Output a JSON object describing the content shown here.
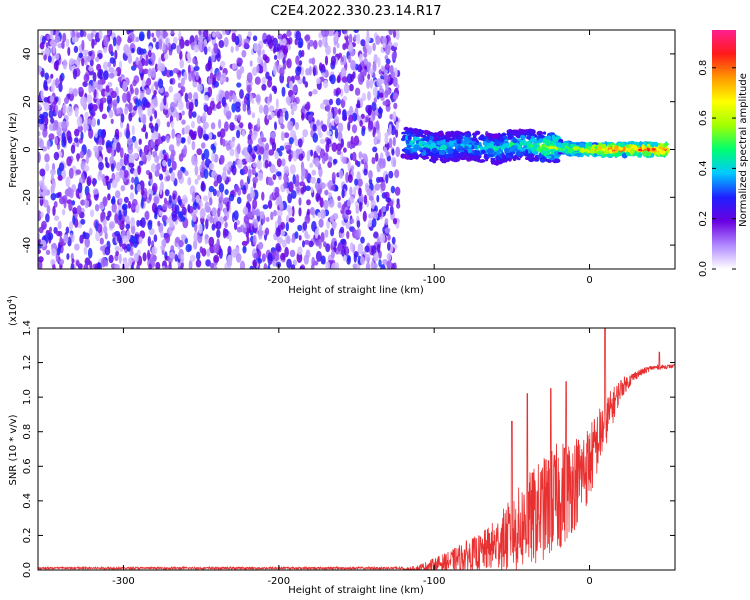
{
  "title": "C2E4.2022.330.23.14.R17",
  "chart_data": [
    {
      "type": "heatmap",
      "xlabel": "Height of straight line (km)",
      "ylabel": "Frequency (Hz)",
      "xlim": [
        -355,
        55
      ],
      "ylim": [
        -50,
        50
      ],
      "x_ticks": [
        {
          "value": -300,
          "label": "-300"
        },
        {
          "value": -200,
          "label": "-200"
        },
        {
          "value": -100,
          "label": "-100"
        },
        {
          "value": 0,
          "label": "0"
        }
      ],
      "y_ticks": [
        {
          "value": -40,
          "label": "-40"
        },
        {
          "value": -20,
          "label": "-20"
        },
        {
          "value": 0,
          "label": "0"
        },
        {
          "value": 20,
          "label": "20"
        },
        {
          "value": 40,
          "label": "40"
        }
      ],
      "noise_region": {
        "x_from": -355,
        "x_to": -123,
        "f_from": -50,
        "f_to": 50,
        "amplitude": [
          0.05,
          0.3
        ]
      },
      "signal_ridge": [
        {
          "x": -120,
          "f": 3,
          "amp": 0.45
        },
        {
          "x": -110,
          "f": 2,
          "amp": 0.5
        },
        {
          "x": -100,
          "f": 1,
          "amp": 0.45
        },
        {
          "x": -90,
          "f": 1,
          "amp": 0.45
        },
        {
          "x": -80,
          "f": 2,
          "amp": 0.45
        },
        {
          "x": -70,
          "f": 1,
          "amp": 0.45
        },
        {
          "x": -60,
          "f": 0,
          "amp": 0.5
        },
        {
          "x": -50,
          "f": 2,
          "amp": 0.5
        },
        {
          "x": -40,
          "f": 2,
          "amp": 0.5
        },
        {
          "x": -30,
          "f": 1,
          "amp": 0.6
        },
        {
          "x": -20,
          "f": 1,
          "amp": 0.65
        },
        {
          "x": -10,
          "f": 0,
          "amp": 0.75
        },
        {
          "x": 0,
          "f": 0,
          "amp": 0.8
        },
        {
          "x": 10,
          "f": 0,
          "amp": 0.85
        },
        {
          "x": 20,
          "f": 0,
          "amp": 0.9
        },
        {
          "x": 30,
          "f": 0,
          "amp": 0.92
        },
        {
          "x": 40,
          "f": 0,
          "amp": 0.92
        },
        {
          "x": 50,
          "f": 0,
          "amp": 0.92
        }
      ],
      "colorbar": {
        "label": "Normalized spectral amplitude",
        "range": [
          0,
          0.95
        ],
        "ticks": [
          {
            "value": 0.0,
            "label": "0.0"
          },
          {
            "value": 0.2,
            "label": "0.2"
          },
          {
            "value": 0.4,
            "label": "0.4"
          },
          {
            "value": 0.6,
            "label": "0.6"
          },
          {
            "value": 0.8,
            "label": "0.8"
          }
        ],
        "colors": [
          "#ffffff",
          "#b088ff",
          "#6a00e0",
          "#1f1fff",
          "#00c8ff",
          "#00ff70",
          "#a0ff00",
          "#ffff00",
          "#ff9900",
          "#ff1a1a",
          "#ff1f8f"
        ]
      }
    },
    {
      "type": "line",
      "xlabel": "Height of straight line (km)",
      "ylabel": "SNR (10 * v/v)",
      "multiplier": "(x10",
      "multiplier_exp": "4",
      "multiplier_close": ")",
      "xlim": [
        -355,
        55
      ],
      "ylim": [
        0,
        1.4
      ],
      "line_color": "#e83030",
      "x_ticks": [
        {
          "value": -300,
          "label": "-300"
        },
        {
          "value": -200,
          "label": "-200"
        },
        {
          "value": -100,
          "label": "-100"
        },
        {
          "value": 0,
          "label": "0"
        }
      ],
      "y_ticks": [
        {
          "value": 0.0,
          "label": "0.0"
        },
        {
          "value": 0.2,
          "label": "0.2"
        },
        {
          "value": 0.4,
          "label": "0.4"
        },
        {
          "value": 0.6,
          "label": "0.6"
        },
        {
          "value": 0.8,
          "label": "0.8"
        },
        {
          "value": 1.0,
          "label": "1.0"
        },
        {
          "value": 1.2,
          "label": "1.2"
        },
        {
          "value": 1.4,
          "label": "1.4"
        }
      ],
      "envelope": {
        "x": [
          -355,
          -120,
          -110,
          -100,
          -90,
          -80,
          -70,
          -60,
          -50,
          -40,
          -30,
          -20,
          -10,
          0,
          10,
          20,
          30,
          40,
          55
        ],
        "base": [
          0.0,
          0.0,
          0.01,
          0.03,
          0.05,
          0.08,
          0.1,
          0.15,
          0.2,
          0.28,
          0.35,
          0.42,
          0.5,
          0.62,
          0.85,
          1.05,
          1.13,
          1.17,
          1.18
        ],
        "spread": [
          0.02,
          0.02,
          0.04,
          0.08,
          0.12,
          0.18,
          0.22,
          0.3,
          0.45,
          0.55,
          0.6,
          0.65,
          0.55,
          0.45,
          0.3,
          0.12,
          0.05,
          0.03,
          0.02
        ]
      },
      "peaks": [
        {
          "x": -50,
          "y": 0.86
        },
        {
          "x": -40,
          "y": 1.02
        },
        {
          "x": -25,
          "y": 1.05
        },
        {
          "x": -15,
          "y": 1.09
        },
        {
          "x": 10,
          "y": 1.4
        },
        {
          "x": 45,
          "y": 1.26
        }
      ]
    }
  ]
}
